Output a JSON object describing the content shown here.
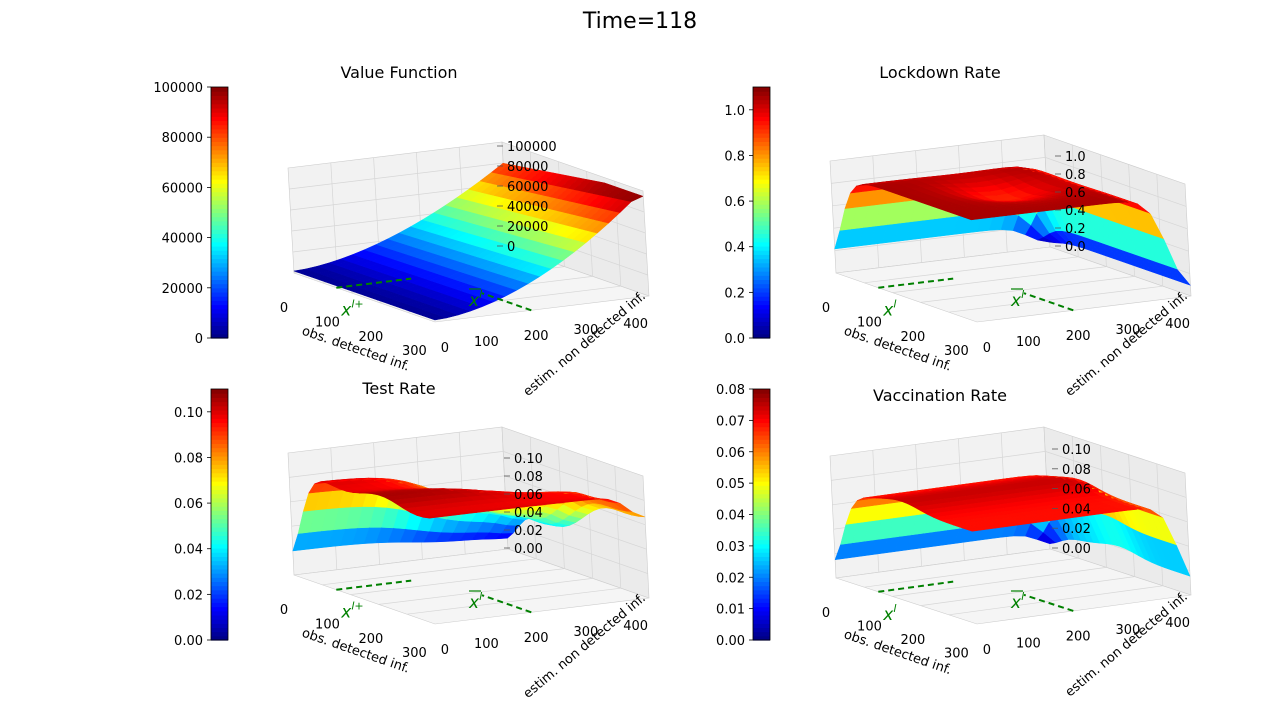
{
  "title": "Time=118",
  "chart_data": [
    {
      "type": "surface3d",
      "title": "Value Function",
      "xlabel": "obs. detected inf.",
      "ylabel": "estim. non detected inf.",
      "xticks": [
        "0",
        "100",
        "200",
        "300"
      ],
      "yticks": [
        "0",
        "100",
        "200",
        "300",
        "400"
      ],
      "zticks": [
        "0",
        "20000",
        "40000",
        "60000",
        "80000",
        "100000"
      ],
      "zlim": [
        0,
        100000
      ],
      "colorbar": {
        "colormap": "jet",
        "ticks": [
          "0",
          "20000",
          "40000",
          "60000",
          "80000",
          "100000"
        ],
        "range": [
          0,
          100000
        ]
      },
      "markers": [
        {
          "label": "x",
          "sup": "l+"
        },
        {
          "label": "x",
          "sup": "l"
        }
      ]
    },
    {
      "type": "surface3d",
      "title": "Lockdown Rate",
      "xlabel": "obs. detected inf.",
      "ylabel": "estim. non detected inf.",
      "xticks": [
        "0",
        "100",
        "200",
        "300"
      ],
      "yticks": [
        "0",
        "100",
        "200",
        "300",
        "400"
      ],
      "zticks": [
        "0.0",
        "0.2",
        "0.4",
        "0.6",
        "0.8",
        "1.0"
      ],
      "zlim": [
        0,
        1.0
      ],
      "colorbar": {
        "colormap": "jet",
        "ticks": [
          "0.0",
          "0.2",
          "0.4",
          "0.6",
          "0.8",
          "1.0"
        ],
        "range": [
          0,
          1.1
        ]
      },
      "markers": [
        {
          "label": "x",
          "sup": "l"
        },
        {
          "label": "x",
          "sup": "l"
        }
      ]
    },
    {
      "type": "surface3d",
      "title": "Test Rate",
      "xlabel": "obs. detected inf.",
      "ylabel": "estim. non detected inf.",
      "xticks": [
        "0",
        "100",
        "200",
        "300"
      ],
      "yticks": [
        "0",
        "100",
        "200",
        "300",
        "400"
      ],
      "zticks": [
        "0.00",
        "0.02",
        "0.04",
        "0.06",
        "0.08",
        "0.10"
      ],
      "zlim": [
        0,
        0.1
      ],
      "colorbar": {
        "colormap": "jet",
        "ticks": [
          "0.00",
          "0.02",
          "0.04",
          "0.06",
          "0.08",
          "0.10"
        ],
        "range": [
          0,
          0.11
        ]
      },
      "markers": [
        {
          "label": "x",
          "sup": "l+"
        },
        {
          "label": "x",
          "sup": "l"
        }
      ]
    },
    {
      "type": "surface3d",
      "title": "Vaccination Rate",
      "xlabel": "obs. detected inf.",
      "ylabel": "estim. non detected inf.",
      "xticks": [
        "0",
        "100",
        "200",
        "300"
      ],
      "yticks": [
        "0",
        "100",
        "200",
        "300",
        "400"
      ],
      "zticks": [
        "0.00",
        "0.02",
        "0.04",
        "0.06",
        "0.08",
        "0.10"
      ],
      "zlim": [
        0,
        0.1
      ],
      "colorbar": {
        "colormap": "jet",
        "ticks": [
          "0.00",
          "0.01",
          "0.02",
          "0.03",
          "0.04",
          "0.05",
          "0.06",
          "0.07",
          "0.08"
        ],
        "range": [
          0,
          0.08
        ]
      },
      "markers": [
        {
          "label": "x",
          "sup": "l"
        },
        {
          "label": "x",
          "sup": "l"
        }
      ]
    }
  ]
}
